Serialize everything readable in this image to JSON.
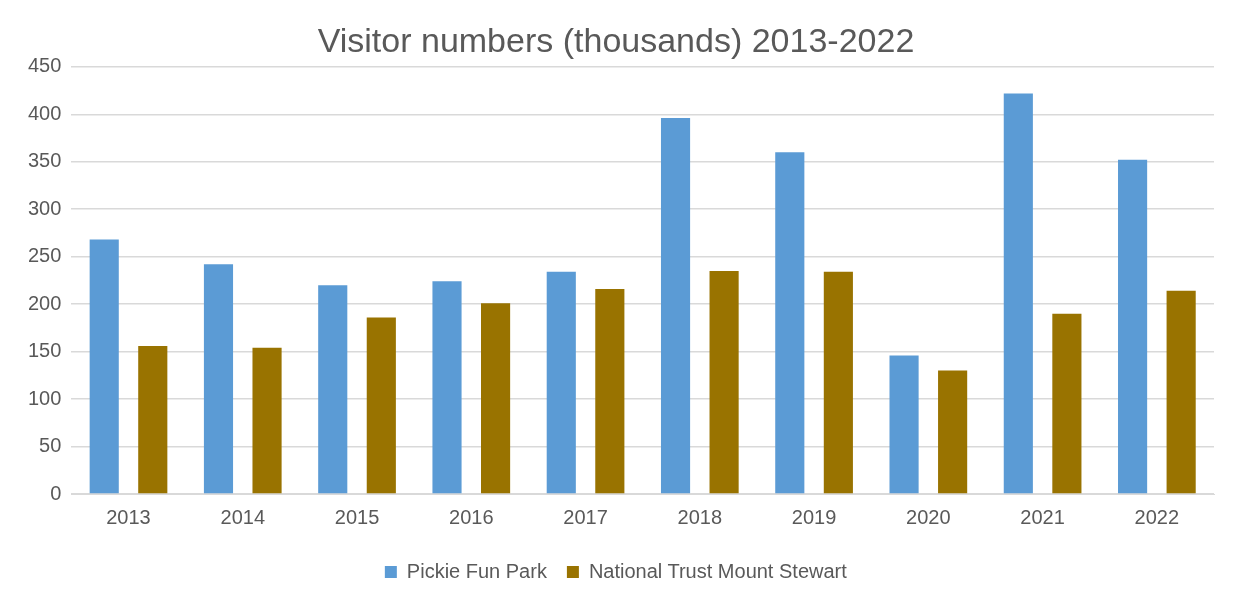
{
  "chart_data": {
    "type": "bar",
    "title": "Visitor numbers (thousands) 2013-2022",
    "categories": [
      "2013",
      "2014",
      "2015",
      "2016",
      "2017",
      "2018",
      "2019",
      "2020",
      "2021",
      "2022"
    ],
    "series": [
      {
        "name": "Pickie Fun Park",
        "color": "#5b9bd5",
        "values": [
          268,
          242,
          220,
          224,
          234,
          396,
          360,
          146,
          422,
          352
        ]
      },
      {
        "name": "National Trust Mount Stewart",
        "color": "#997300",
        "values": [
          156,
          154,
          186,
          201,
          216,
          235,
          234,
          130,
          190,
          214
        ]
      }
    ],
    "ylim": [
      0,
      450
    ],
    "yticks": [
      0,
      50,
      100,
      150,
      200,
      250,
      300,
      350,
      400,
      450
    ],
    "grid": "y",
    "legend": "bottom"
  }
}
